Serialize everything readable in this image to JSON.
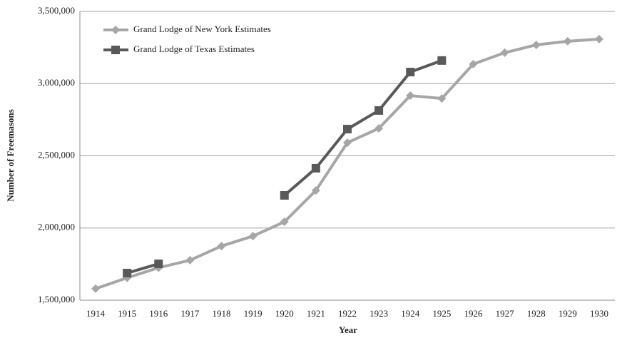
{
  "chart_data": {
    "type": "line",
    "x_label": "Year",
    "y_label": "Number of Freemasons",
    "categories": [
      "1914",
      "1915",
      "1916",
      "1917",
      "1918",
      "1919",
      "1920",
      "1921",
      "1922",
      "1923",
      "1924",
      "1925",
      "1926",
      "1927",
      "1928",
      "1929",
      "1930"
    ],
    "series": [
      {
        "name": "Grand Lodge of New York Estimates",
        "color": "#a6a6a6",
        "marker": "diamond",
        "values": [
          1580000,
          1655000,
          1725000,
          1777000,
          1875000,
          1944000,
          2043000,
          2260000,
          2591000,
          2690000,
          2917000,
          2897000,
          3135000,
          3214000,
          3268000,
          3293000,
          3308000
        ]
      },
      {
        "name": "Grand Lodge of Texas Estimates",
        "color": "#595959",
        "marker": "square",
        "values": [
          null,
          1688000,
          1752000,
          null,
          null,
          null,
          2226000,
          2414000,
          2685000,
          2814000,
          3080000,
          3160000,
          null,
          null,
          null,
          null,
          null
        ]
      }
    ],
    "ylim": [
      1500000,
      3500000
    ],
    "yticks": [
      {
        "value": 1500000,
        "label": "1,500,000"
      },
      {
        "value": 2000000,
        "label": "2,000,000"
      },
      {
        "value": 2500000,
        "label": "2,500,000"
      },
      {
        "value": 3000000,
        "label": "3,000,000"
      },
      {
        "value": 3500000,
        "label": "3,500,000"
      }
    ],
    "grid": true,
    "legend": "top-left"
  }
}
